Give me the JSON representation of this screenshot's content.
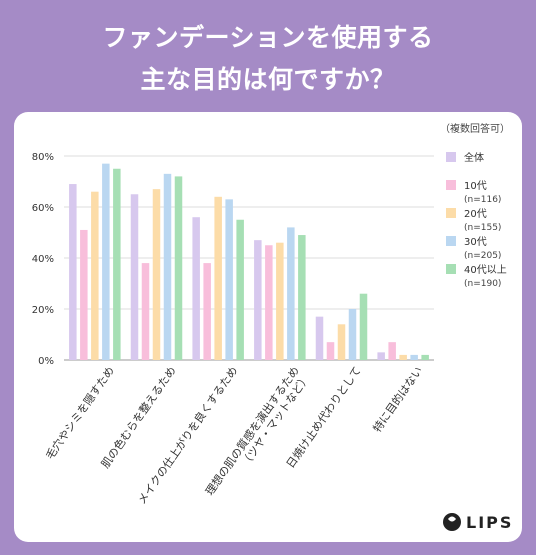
{
  "header": {
    "title_line1": "ファンデーションを使用する",
    "title_line2": "主な目的は何ですか？"
  },
  "note": "（複数回答可）",
  "brand": "LIPS",
  "colors": {
    "background": "#a58bc6",
    "series": [
      "#d7c8ee",
      "#f8bedb",
      "#fcdca8",
      "#bad7f1",
      "#a6dfb4"
    ]
  },
  "chart_data": {
    "type": "bar",
    "categories": [
      "毛穴やシミを隠すため",
      "肌の色むらを整えるため",
      "メイクの仕上がりを良くするため",
      "理想の肌の質感を演出するため（ツヤ・マットなど）",
      "日焼け止め代わりとして",
      "特に目的はない"
    ],
    "series": [
      {
        "name": "全体",
        "values": [
          69,
          65,
          56,
          47,
          17,
          3
        ]
      },
      {
        "name": "10代 (n=116)",
        "values": [
          51,
          38,
          38,
          45,
          7,
          7
        ]
      },
      {
        "name": "20代 (n=155)",
        "values": [
          66,
          67,
          64,
          46,
          14,
          2
        ]
      },
      {
        "name": "30代 (n=205)",
        "values": [
          77,
          73,
          63,
          52,
          20,
          2
        ]
      },
      {
        "name": "40代以上 (n=190)",
        "values": [
          75,
          72,
          55,
          49,
          26,
          2
        ]
      }
    ],
    "yticks": [
      "0%",
      "20%",
      "40%",
      "60%",
      "80%"
    ],
    "ylim": [
      0,
      80
    ],
    "grid": true,
    "legend": "right"
  }
}
